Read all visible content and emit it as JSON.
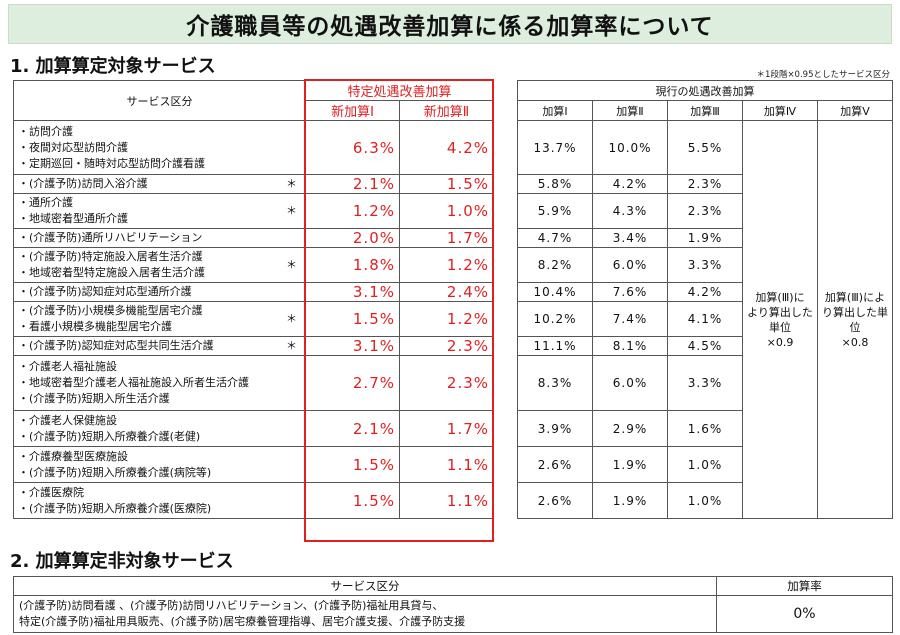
{
  "title": "介護職員等の処遇改善加算に係る加算率について",
  "section1": "1. 加算算定対象サービス",
  "note": "＊1段階×0.95としたサービス区分",
  "left_table": {
    "service_header": "サービス区分",
    "group_header": "特定処遇改善加算",
    "col1": "新加算Ⅰ",
    "col2": "新加算Ⅱ",
    "rows": [
      {
        "lines": [
          "・訪問介護",
          "・夜間対応型訪問介護",
          "・定期巡回・随時対応型訪問介護看護"
        ],
        "mark": "",
        "v1": "6.3%",
        "v2": "4.2%"
      },
      {
        "lines": [
          "・(介護予防)訪問入浴介護"
        ],
        "mark": "＊",
        "v1": "2.1%",
        "v2": "1.5%"
      },
      {
        "lines": [
          "・通所介護",
          "・地域密着型通所介護"
        ],
        "mark": "＊",
        "v1": "1.2%",
        "v2": "1.0%"
      },
      {
        "lines": [
          "・(介護予防)通所リハビリテーション"
        ],
        "mark": "",
        "v1": "2.0%",
        "v2": "1.7%"
      },
      {
        "lines": [
          "・(介護予防)特定施設入居者生活介護",
          "・地域密着型特定施設入居者生活介護"
        ],
        "mark": "＊",
        "v1": "1.8%",
        "v2": "1.2%"
      },
      {
        "lines": [
          "・(介護予防)認知症対応型通所介護"
        ],
        "mark": "",
        "v1": "3.1%",
        "v2": "2.4%"
      },
      {
        "lines": [
          "・(介護予防)小規模多機能型居宅介護",
          "・看護小規模多機能型居宅介護"
        ],
        "mark": "＊",
        "v1": "1.5%",
        "v2": "1.2%"
      },
      {
        "lines": [
          "・(介護予防)認知症対応型共同生活介護"
        ],
        "mark": "＊",
        "v1": "3.1%",
        "v2": "2.3%"
      },
      {
        "lines": [
          "・介護老人福祉施設",
          "・地域密着型介護老人福祉施設入所者生活介護",
          "・(介護予防)短期入所生活介護"
        ],
        "mark": "",
        "v1": "2.7%",
        "v2": "2.3%"
      },
      {
        "lines": [
          "・介護老人保健施設",
          "・(介護予防)短期入所療養介護(老健)"
        ],
        "mark": "",
        "v1": "2.1%",
        "v2": "1.7%"
      },
      {
        "lines": [
          "・介護療養型医療施設",
          "・(介護予防)短期入所療養介護(病院等)"
        ],
        "mark": "",
        "v1": "1.5%",
        "v2": "1.1%"
      },
      {
        "lines": [
          "・介護医療院",
          "・(介護予防)短期入所療養介護(医療院)"
        ],
        "mark": "",
        "v1": "1.5%",
        "v2": "1.1%"
      }
    ]
  },
  "right_table": {
    "group_header": "現行の処遇改善加算",
    "col1": "加算Ⅰ",
    "col2": "加算Ⅱ",
    "col3": "加算Ⅲ",
    "col4": "加算Ⅳ",
    "col5": "加算Ⅴ",
    "col4_text": [
      "加算(Ⅲ)に",
      "より算出した",
      "単位",
      "×0.9"
    ],
    "col5_text": [
      "加算(Ⅲ)によ",
      "り算出した単",
      "位",
      "×0.8"
    ],
    "rows": [
      [
        "13.7%",
        "10.0%",
        "5.5%"
      ],
      [
        "5.8%",
        "4.2%",
        "2.3%"
      ],
      [
        "5.9%",
        "4.3%",
        "2.3%"
      ],
      [
        "4.7%",
        "3.4%",
        "1.9%"
      ],
      [
        "8.2%",
        "6.0%",
        "3.3%"
      ],
      [
        "10.4%",
        "7.6%",
        "4.2%"
      ],
      [
        "10.2%",
        "7.4%",
        "4.1%"
      ],
      [
        "11.1%",
        "8.1%",
        "4.5%"
      ],
      [
        "8.3%",
        "6.0%",
        "3.3%"
      ],
      [
        "3.9%",
        "2.9%",
        "1.6%"
      ],
      [
        "2.6%",
        "1.9%",
        "1.0%"
      ],
      [
        "2.6%",
        "1.9%",
        "1.0%"
      ]
    ]
  },
  "section2": "2. 加算算定非対象サービス",
  "bottom_table": {
    "service_header": "サービス区分",
    "rate_header": "加算率",
    "lines": [
      "(介護予防)訪問看護 、(介護予防)訪問リハビリテーション、(介護予防)福祉用具貸与、",
      "特定(介護予防)福祉用具販売、(介護予防)居宅療養管理指導、居宅介護支援、介護予防支援"
    ],
    "rate": "0%"
  }
}
